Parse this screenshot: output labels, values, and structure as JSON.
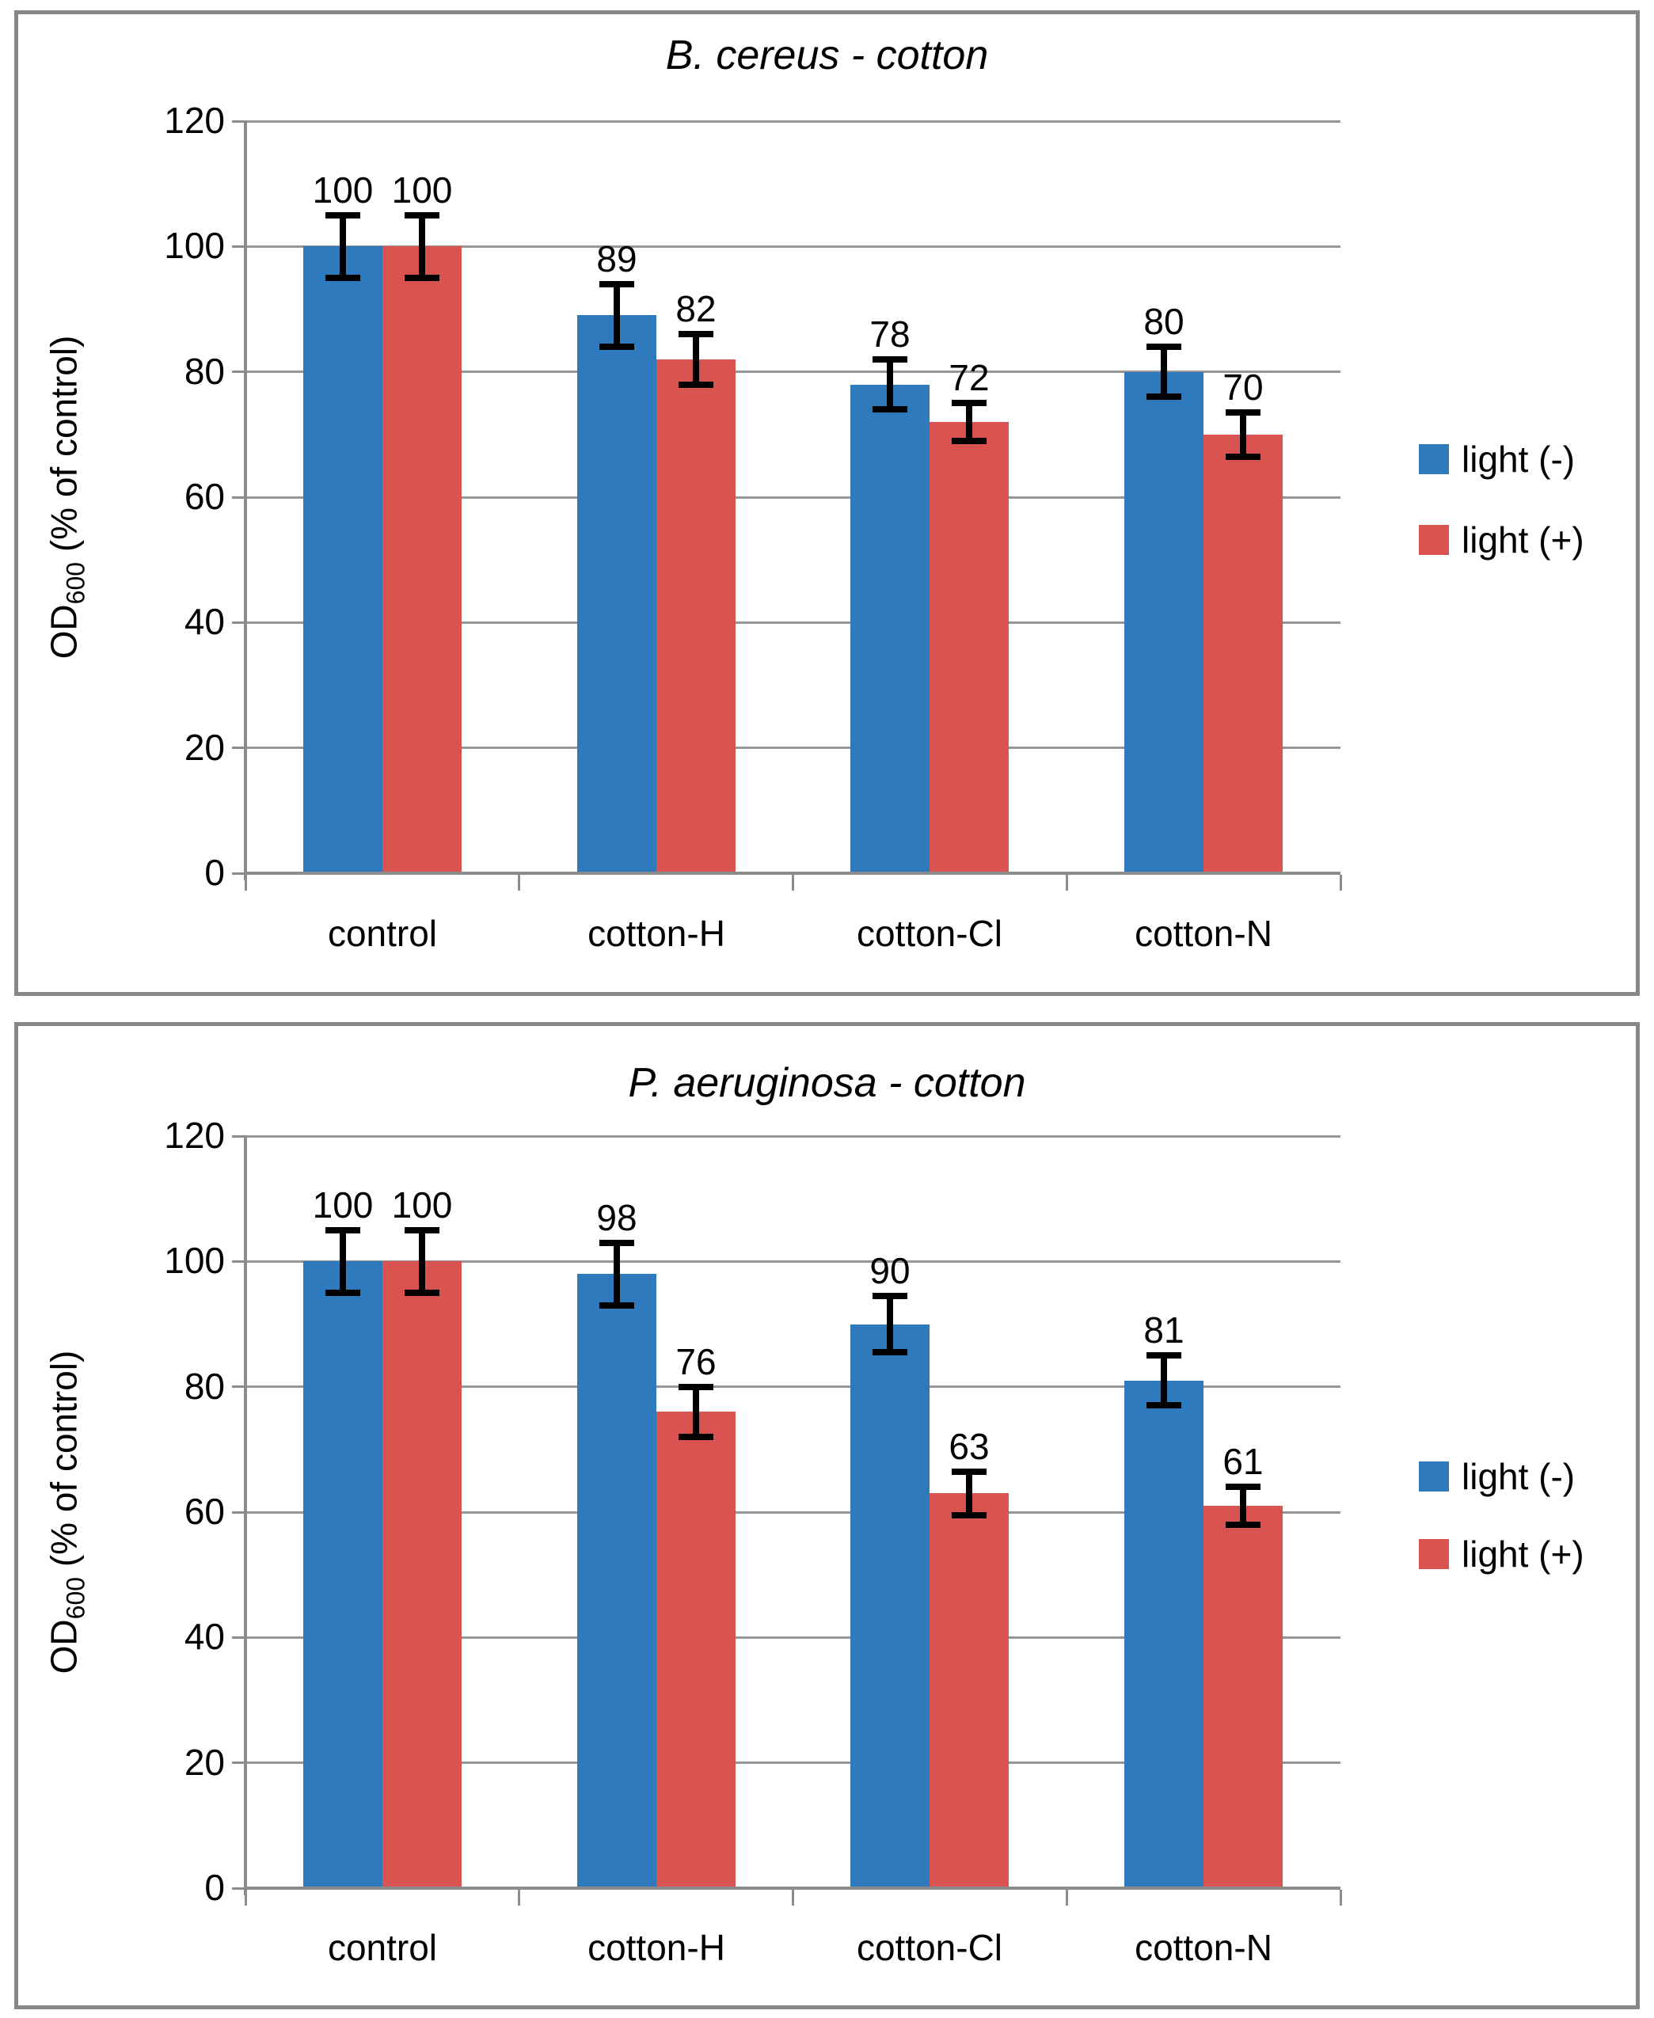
{
  "colors": {
    "light_minus": "#2E7ABD",
    "light_plus": "#D95350",
    "gridline": "#969696",
    "axis": "#8C8C8C",
    "panel_border": "#878787",
    "error_bar": "#000000",
    "text": "#000000",
    "background": "#ffffff"
  },
  "y_axis_label": {
    "prefix": "OD",
    "subscript": "600",
    "suffix": " (% of control)"
  },
  "chart_data": [
    {
      "type": "bar",
      "title": "B. cereus - cotton",
      "ylabel": "OD600 (% of control)",
      "xlabel": "",
      "ylim": [
        0,
        120
      ],
      "yticks": [
        0,
        20,
        40,
        60,
        80,
        100,
        120
      ],
      "grid": true,
      "legend_position": "right",
      "categories": [
        "control",
        "cotton-H",
        "cotton-Cl",
        "cotton-N"
      ],
      "series": [
        {
          "name": "light (-)",
          "color_key": "light_minus",
          "values": [
            100,
            89,
            78,
            80
          ],
          "errors": [
            5,
            5,
            4,
            4
          ]
        },
        {
          "name": "light (+)",
          "color_key": "light_plus",
          "values": [
            100,
            82,
            72,
            70
          ],
          "errors": [
            5,
            4,
            3,
            3.5
          ]
        }
      ]
    },
    {
      "type": "bar",
      "title": "P. aeruginosa - cotton",
      "ylabel": "OD600 (% of control)",
      "xlabel": "",
      "ylim": [
        0,
        120
      ],
      "yticks": [
        0,
        20,
        40,
        60,
        80,
        100,
        120
      ],
      "grid": true,
      "legend_position": "right",
      "categories": [
        "control",
        "cotton-H",
        "cotton-Cl",
        "cotton-N"
      ],
      "series": [
        {
          "name": "light (-)",
          "color_key": "light_minus",
          "values": [
            100,
            98,
            90,
            81
          ],
          "errors": [
            5,
            5,
            4.5,
            4
          ]
        },
        {
          "name": "light (+)",
          "color_key": "light_plus",
          "values": [
            100,
            76,
            63,
            61
          ],
          "errors": [
            5,
            4,
            3.5,
            3
          ]
        }
      ]
    }
  ]
}
